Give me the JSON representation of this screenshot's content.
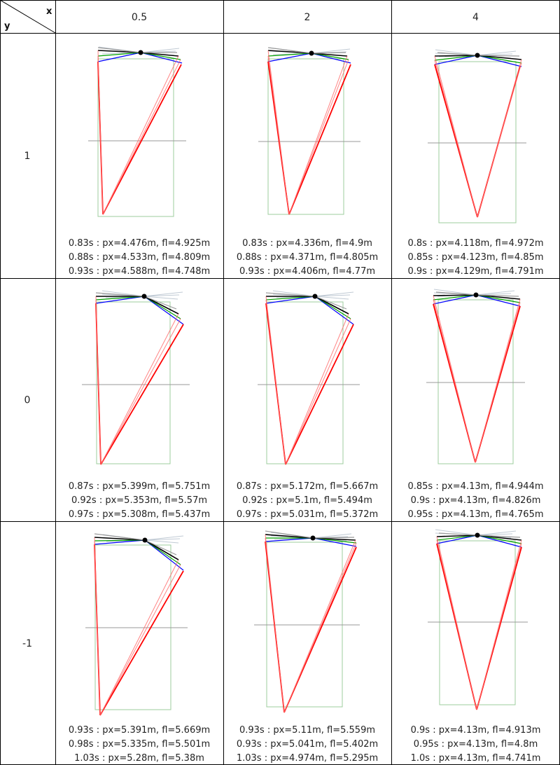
{
  "corner": {
    "x_label": "x",
    "y_label": "y"
  },
  "columns": [
    "0.5",
    "2",
    "4"
  ],
  "rows": [
    "1",
    "0",
    "-1"
  ],
  "cells": [
    [
      {
        "lines": [
          "0.83s : px=4.476m, fl=4.925m",
          "0.88s : px=4.533m, fl=4.809m",
          "0.93s : px=4.588m, fl=4.748m"
        ]
      },
      {
        "lines": [
          "0.83s : px=4.336m, fl=4.9m",
          "0.88s : px=4.371m, fl=4.805m",
          "0.93s : px=4.406m, fl=4.77m"
        ]
      },
      {
        "lines": [
          "0.8s : px=4.118m, fl=4.972m",
          "0.85s : px=4.123m, fl=4.85m",
          "0.9s : px=4.129m, fl=4.791m"
        ]
      }
    ],
    [
      {
        "lines": [
          "0.87s : px=5.399m, fl=5.751m",
          "0.92s : px=5.353m, fl=5.57m",
          "0.97s : px=5.308m, fl=5.437m"
        ]
      },
      {
        "lines": [
          "0.87s : px=5.172m, fl=5.667m",
          "0.92s : px=5.1m, fl=5.494m",
          "0.97s : px=5.031m, fl=5.372m"
        ]
      },
      {
        "lines": [
          "0.85s : px=4.13m, fl=4.944m",
          "0.9s : px=4.13m, fl=4.826m",
          "0.95s : px=4.13m, fl=4.765m"
        ]
      }
    ],
    [
      {
        "lines": [
          "0.93s : px=5.391m, fl=5.669m",
          "0.98s : px=5.335m, fl=5.501m",
          "1.03s : px=5.28m, fl=5.38m"
        ]
      },
      {
        "lines": [
          "0.93s : px=5.11m, fl=5.559m",
          "0.93s : px=5.041m, fl=5.402m",
          "1.03s : px=4.974m, fl=5.295m"
        ]
      },
      {
        "lines": [
          "0.9s : px=4.13m, fl=4.913m",
          "0.95s : px=4.13m, fl=4.8m",
          "1.0s : px=4.13m, fl=4.741m"
        ]
      }
    ]
  ],
  "colors": {
    "grid": "#000000",
    "guide": "#9ccc9c",
    "midline": "#999999",
    "top_grey": "#9a9a9a",
    "top_light": "#b9c4cf",
    "black": "#000000",
    "green": "#00a000",
    "blue": "#0000ff",
    "red": "#ff0000",
    "red_faint": "#ff6666"
  }
}
